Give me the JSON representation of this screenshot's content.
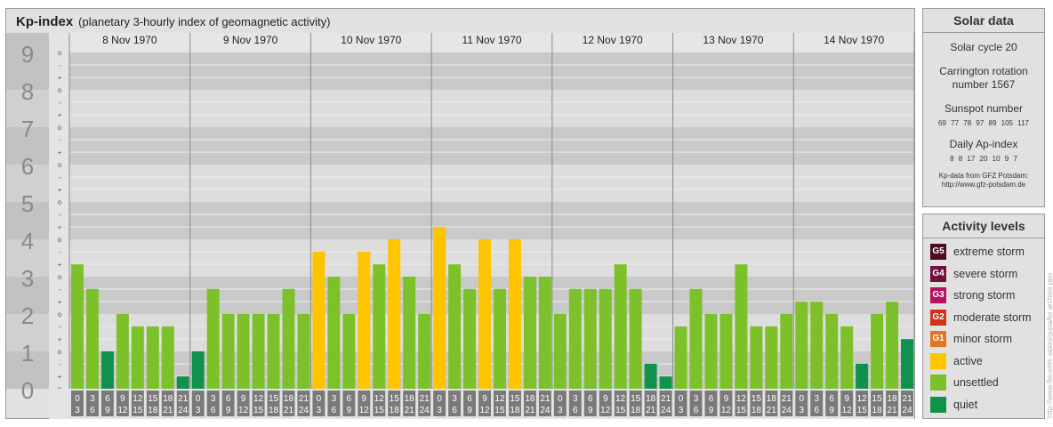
{
  "header": {
    "title": "Kp-index",
    "subtitle": "(planetary 3-hourly index of geomagnetic activity)"
  },
  "chart_data": {
    "type": "bar",
    "ylim": [
      0,
      9
    ],
    "y_ticks": [
      "0",
      "1",
      "2",
      "3",
      "4",
      "5",
      "6",
      "7",
      "8",
      "9"
    ],
    "minor_tick_labels": [
      "o",
      "+",
      "-"
    ],
    "days": [
      "8 Nov 1970",
      "9 Nov 1970",
      "10 Nov 1970",
      "11 Nov 1970",
      "12 Nov 1970",
      "13 Nov 1970",
      "14 Nov 1970"
    ],
    "hour_labels": [
      [
        "0",
        "3"
      ],
      [
        "3",
        "6"
      ],
      [
        "6",
        "9"
      ],
      [
        "9",
        "12"
      ],
      [
        "12",
        "15"
      ],
      [
        "15",
        "18"
      ],
      [
        "18",
        "21"
      ],
      [
        "21",
        "24"
      ]
    ],
    "series": [
      {
        "values": [
          3.33,
          2.67,
          1.0,
          2.0,
          1.67,
          1.67,
          1.67,
          0.33,
          1.0,
          2.67,
          2.0,
          2.0,
          2.0,
          2.0,
          2.67,
          2.0,
          3.67,
          3.0,
          2.0,
          3.67,
          3.33,
          4.0,
          3.0,
          2.0,
          4.33,
          3.33,
          2.67,
          4.0,
          2.67,
          4.0,
          3.0,
          3.0,
          2.0,
          2.67,
          2.67,
          2.67,
          3.33,
          2.67,
          0.67,
          0.33,
          1.67,
          2.67,
          2.0,
          2.0,
          3.33,
          1.67,
          1.67,
          2.0,
          2.33,
          2.33,
          2.0,
          1.67,
          0.67,
          2.0,
          2.33,
          1.33
        ]
      }
    ],
    "level_colors": {
      "quiet": "#11924c",
      "unsettled": "#7cc12a",
      "active": "#fec400"
    }
  },
  "solar": {
    "title": "Solar data",
    "cycle": "Solar cycle 20",
    "carrington_line1": "Carrington rotation",
    "carrington_line2": "number 1567",
    "sunspot_title": "Sunspot number",
    "sunspot_values": "69 77 78 97 89 105 117",
    "ap_title": "Daily Ap-index",
    "ap_values": "8 8 17 20 10 9 7",
    "credit_line1": "Kp-data from GFZ Potsdam:",
    "credit_line2": "http://www.gfz-potsdam.de"
  },
  "activity": {
    "title": "Activity levels",
    "items": [
      {
        "code": "G5",
        "label": "extreme storm",
        "color": "#4a0d24"
      },
      {
        "code": "G4",
        "label": "severe storm",
        "color": "#73103e"
      },
      {
        "code": "G3",
        "label": "strong storm",
        "color": "#b5115e"
      },
      {
        "code": "G2",
        "label": "moderate storm",
        "color": "#d3311a"
      },
      {
        "code": "G1",
        "label": "minor storm",
        "color": "#e47520"
      },
      {
        "code": "",
        "label": "active",
        "color": "#fec400"
      },
      {
        "code": "",
        "label": "unsettled",
        "color": "#7cc12a"
      },
      {
        "code": "",
        "label": "quiet",
        "color": "#11924c"
      }
    ]
  },
  "credit": "http://www.fleuxtrm.sipoo/gupa/ko archive.ppo"
}
